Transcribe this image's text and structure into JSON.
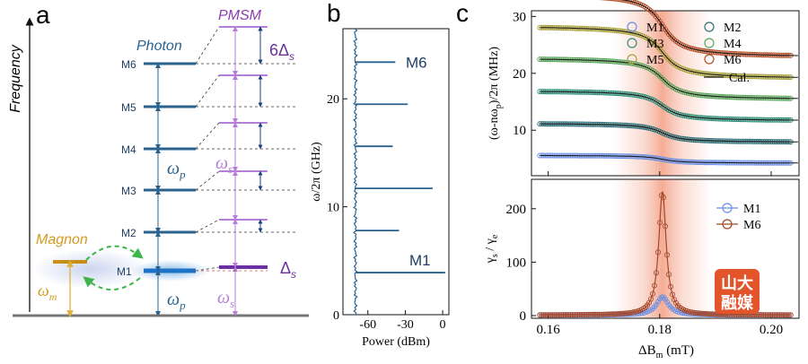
{
  "panels": {
    "a": {
      "label": "a",
      "axis_label": "Frequency",
      "photon_label": "Photon",
      "pmsm_label": "PMSM",
      "magnon_label": "Magnon",
      "mode_labels": [
        "M1",
        "M2",
        "M3",
        "M4",
        "M5",
        "M6"
      ],
      "omega_p": "ω",
      "omega_p_sub": "p",
      "omega_s": "ω",
      "omega_s_sub": "s",
      "omega_m": "ω",
      "omega_m_sub": "m",
      "delta_s": "Δ",
      "delta_s_sub": "s",
      "six_delta_s": "6Δ",
      "six_delta_s_sub": "s"
    },
    "b": {
      "label": "b"
    },
    "c": {
      "label": "c"
    }
  },
  "chart_data": [
    {
      "type": "line",
      "id": "spectrum",
      "panel": "b",
      "xlabel": "Power (dBm)",
      "ylabel": "ω/2π (GHz)",
      "xlim": [
        -80,
        5
      ],
      "ylim": [
        0,
        26.5
      ],
      "xticks": [
        -60,
        -30,
        0
      ],
      "xtick_labels": [
        "-60",
        "-30",
        "0"
      ],
      "yticks": [
        0,
        10,
        20
      ],
      "ytick_labels": [
        "0",
        "10",
        "20"
      ],
      "baseline_dbm": -70,
      "peaks": [
        {
          "freq": 3.9,
          "power": 2
        },
        {
          "freq": 7.8,
          "power": -35
        },
        {
          "freq": 11.7,
          "power": -8
        },
        {
          "freq": 15.6,
          "power": -40
        },
        {
          "freq": 19.5,
          "power": -28
        },
        {
          "freq": 23.4,
          "power": -38
        }
      ],
      "annotations": [
        {
          "text": "M6",
          "freq": 23.4
        },
        {
          "text": "M1",
          "freq": 3.9
        }
      ],
      "color": "#2a628e"
    },
    {
      "type": "scatter",
      "id": "dispersion",
      "panel": "c-top",
      "ylabel": "(ω-nω",
      "ylabel_sub": "p",
      "ylabel_tail": ")/2π (MHz)",
      "xlim": [
        0.157,
        0.205
      ],
      "ylim": [
        2,
        31
      ],
      "yticks": [
        10,
        20,
        30
      ],
      "ytick_labels": [
        "10",
        "20",
        "30"
      ],
      "center": 0.1805,
      "series": [
        {
          "name": "M1",
          "y0": 5.0,
          "color": "#6b8fe6"
        },
        {
          "name": "M2",
          "y0": 9.8,
          "color": "#2e6f78"
        },
        {
          "name": "M3",
          "y0": 14.7,
          "color": "#2f8f7a"
        },
        {
          "name": "M4",
          "y0": 19.6,
          "color": "#5aa55a"
        },
        {
          "name": "M5",
          "y0": 24.4,
          "color": "#a8a03a"
        },
        {
          "name": "M6",
          "y0": 29.3,
          "color": "#b54f2a"
        }
      ],
      "fit_label": "Cal.",
      "fit_color": "#111111"
    },
    {
      "type": "line",
      "id": "linewidth",
      "panel": "c-bottom",
      "ylabel": "γ",
      "ylabel_sub1": "s",
      "ylabel_mid": " / γ",
      "ylabel_sub2": "e",
      "xlabel": "ΔB",
      "xlabel_sub": "m",
      "xlabel_tail": " (mT)",
      "xlim": [
        0.157,
        0.205
      ],
      "ylim": [
        -5,
        255
      ],
      "xticks": [
        0.16,
        0.18,
        0.2
      ],
      "xtick_labels": [
        "0.16",
        "0.18",
        "0.20"
      ],
      "yticks": [
        0,
        100,
        200
      ],
      "ytick_labels": [
        "0",
        "100",
        "200"
      ],
      "center": 0.1805,
      "series": [
        {
          "name": "M1",
          "peak": 35,
          "width": 0.0013,
          "color": "#6b8fe6"
        },
        {
          "name": "M6",
          "peak": 232,
          "width": 0.0008,
          "color": "#a5472a"
        }
      ]
    }
  ],
  "watermark": {
    "line1": "山大",
    "line2": "融媒"
  }
}
